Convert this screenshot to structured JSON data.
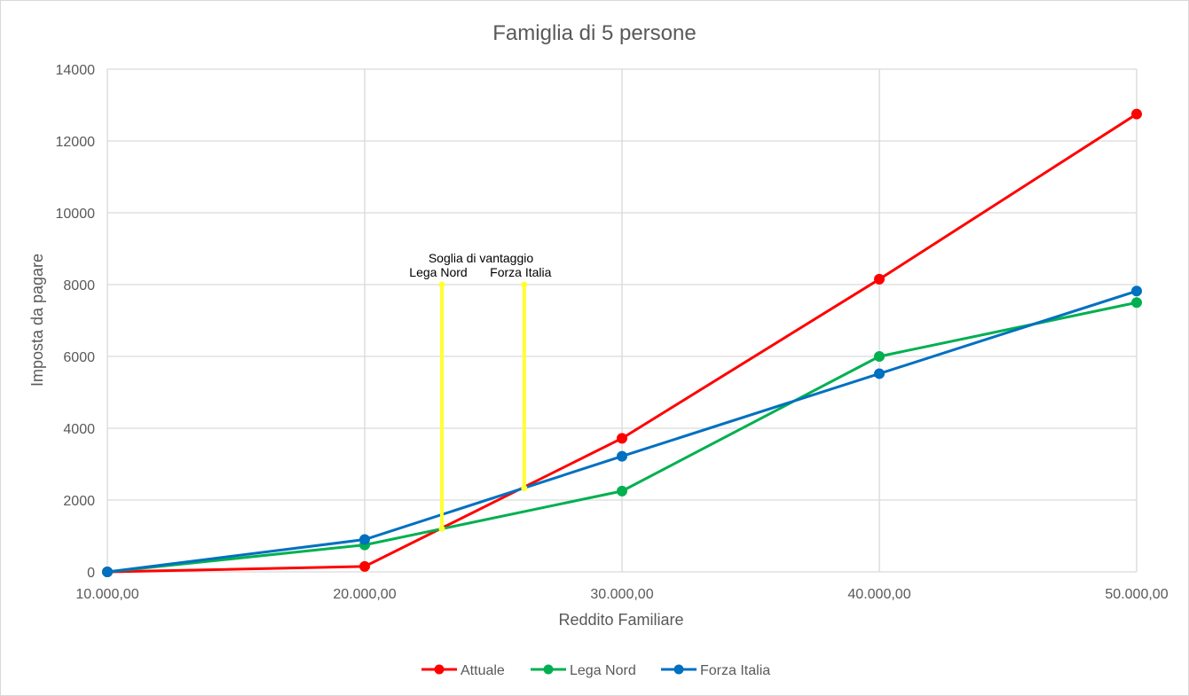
{
  "chart_data": {
    "type": "line",
    "title": "Famiglia di 5 persone",
    "xlabel": "Reddito Familiare",
    "ylabel": "Imposta da pagare",
    "x": [
      10000,
      20000,
      30000,
      40000,
      50000
    ],
    "x_tick_labels": [
      "10.000,00",
      "20.000,00",
      "30.000,00",
      "40.000,00",
      "50.000,00"
    ],
    "xlim": [
      10000,
      50000
    ],
    "ylim": [
      0,
      14000
    ],
    "y_ticks": [
      0,
      2000,
      4000,
      6000,
      8000,
      10000,
      12000,
      14000
    ],
    "y_tick_labels": [
      "0",
      "2000",
      "4000",
      "6000",
      "8000",
      "10000",
      "12000",
      "14000"
    ],
    "grid": true,
    "legend_position": "bottom",
    "series": [
      {
        "name": "Attuale",
        "color": "#FF0000",
        "values": [
          0,
          150,
          3720,
          8150,
          12750
        ]
      },
      {
        "name": "Lega Nord",
        "color": "#00B050",
        "values": [
          0,
          750,
          2250,
          6000,
          7500
        ]
      },
      {
        "name": "Forza Italia",
        "color": "#0070C0",
        "values": [
          0,
          900,
          3220,
          5520,
          7820
        ]
      }
    ],
    "annotations": {
      "header": "Soglia di vantaggio",
      "color": "#FFFF33",
      "lines": [
        {
          "label": "Lega Nord",
          "x": 23000,
          "y_from": 1200,
          "y_to": 8000
        },
        {
          "label": "Forza Italia",
          "x": 26200,
          "y_from": 2330,
          "y_to": 8000
        }
      ]
    }
  }
}
